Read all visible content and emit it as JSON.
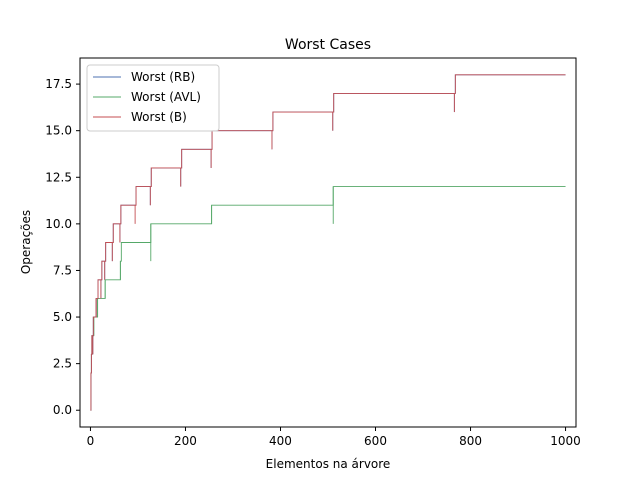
{
  "chart_data": {
    "type": "line",
    "title": "Worst Cases",
    "xlabel": "Elementos na árvore",
    "ylabel": "Operações",
    "xlim": [
      -22,
      1022
    ],
    "ylim": [
      -0.9,
      18.9
    ],
    "xticks": [
      0,
      200,
      400,
      600,
      800,
      1000
    ],
    "yticks": [
      0.0,
      2.5,
      5.0,
      7.5,
      10.0,
      12.5,
      15.0,
      17.5
    ],
    "xtick_labels": [
      "0",
      "200",
      "400",
      "600",
      "800",
      "1000"
    ],
    "ytick_labels": [
      "0.0",
      "2.5",
      "5.0",
      "7.5",
      "10.0",
      "12.5",
      "15.0",
      "17.5"
    ],
    "grid": false,
    "legend_position": "top-left",
    "series": [
      {
        "name": "Worst (RB)",
        "color": "#4c72b0",
        "steps": [
          [
            1,
            2
          ],
          [
            2,
            3
          ],
          [
            3,
            4
          ],
          [
            5,
            4
          ],
          [
            6,
            5
          ],
          [
            10,
            5
          ],
          [
            12,
            6
          ],
          [
            14,
            6
          ],
          [
            16,
            7
          ],
          [
            22,
            7
          ],
          [
            24,
            8
          ],
          [
            30,
            8
          ],
          [
            32,
            9
          ],
          [
            46,
            9
          ],
          [
            48,
            10
          ],
          [
            62,
            10
          ],
          [
            64,
            11
          ],
          [
            94,
            11
          ],
          [
            96,
            12
          ],
          [
            126,
            12
          ],
          [
            128,
            13
          ],
          [
            190,
            13
          ],
          [
            192,
            14
          ],
          [
            254,
            14
          ],
          [
            256,
            15
          ],
          [
            382,
            15
          ],
          [
            384,
            16
          ],
          [
            510,
            16
          ],
          [
            512,
            17
          ],
          [
            766,
            17
          ],
          [
            768,
            18
          ],
          [
            1000,
            18
          ]
        ],
        "dips": [
          [
            5,
            3
          ],
          [
            12,
            5
          ],
          [
            22,
            6
          ],
          [
            30,
            7
          ],
          [
            46,
            8
          ],
          [
            62,
            9
          ],
          [
            94,
            11
          ],
          [
            126,
            11
          ],
          [
            190,
            12
          ],
          [
            254,
            13
          ],
          [
            382,
            14
          ],
          [
            510,
            15
          ],
          [
            766,
            16
          ]
        ]
      },
      {
        "name": "Worst (AVL)",
        "color": "#55a868",
        "steps": [
          [
            1,
            2
          ],
          [
            2,
            3
          ],
          [
            3,
            4
          ],
          [
            6,
            4
          ],
          [
            7,
            5
          ],
          [
            14,
            5
          ],
          [
            15,
            6
          ],
          [
            30,
            6
          ],
          [
            31,
            7
          ],
          [
            62,
            7
          ],
          [
            63,
            8
          ],
          [
            64,
            8
          ],
          [
            65,
            9
          ],
          [
            126,
            9
          ],
          [
            127,
            10
          ],
          [
            254,
            10
          ],
          [
            255,
            11
          ],
          [
            510,
            11
          ],
          [
            511,
            12
          ],
          [
            1000,
            12
          ]
        ],
        "dips": [
          [
            7,
            4
          ],
          [
            15,
            5
          ],
          [
            31,
            6
          ],
          [
            63,
            7
          ],
          [
            127,
            8
          ],
          [
            255,
            10
          ],
          [
            511,
            10
          ]
        ]
      },
      {
        "name": "Worst (B)",
        "color": "#c44e52",
        "steps": [
          [
            1,
            2
          ],
          [
            2,
            3
          ],
          [
            3,
            4
          ],
          [
            5,
            4
          ],
          [
            6,
            5
          ],
          [
            10,
            5
          ],
          [
            12,
            6
          ],
          [
            14,
            6
          ],
          [
            16,
            7
          ],
          [
            22,
            7
          ],
          [
            24,
            8
          ],
          [
            30,
            8
          ],
          [
            32,
            9
          ],
          [
            46,
            9
          ],
          [
            48,
            10
          ],
          [
            62,
            10
          ],
          [
            64,
            11
          ],
          [
            94,
            11
          ],
          [
            96,
            12
          ],
          [
            126,
            12
          ],
          [
            128,
            13
          ],
          [
            190,
            13
          ],
          [
            192,
            14
          ],
          [
            254,
            14
          ],
          [
            256,
            15
          ],
          [
            382,
            15
          ],
          [
            384,
            16
          ],
          [
            510,
            16
          ],
          [
            512,
            17
          ],
          [
            766,
            17
          ],
          [
            768,
            18
          ],
          [
            1000,
            18
          ]
        ],
        "dips": [
          [
            5,
            3
          ],
          [
            12,
            5
          ],
          [
            22,
            6
          ],
          [
            30,
            7
          ],
          [
            46,
            8
          ],
          [
            62,
            9
          ],
          [
            94,
            10
          ],
          [
            126,
            11
          ],
          [
            190,
            12
          ],
          [
            254,
            13
          ],
          [
            382,
            14
          ],
          [
            510,
            15
          ],
          [
            766,
            16
          ]
        ]
      }
    ]
  }
}
